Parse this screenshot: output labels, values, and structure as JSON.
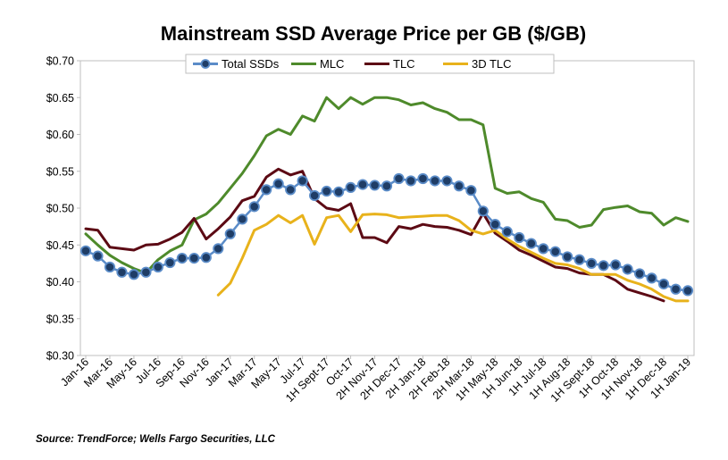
{
  "chart_data": {
    "type": "line",
    "title": "Mainstream SSD Average Price per GB ($/GB)",
    "source": "Source: TrendForce; Wells Fargo Securities, LLC",
    "ylim": [
      0.3,
      0.7
    ],
    "y_ticks": [
      "$0.30",
      "$0.35",
      "$0.40",
      "$0.45",
      "$0.50",
      "$0.55",
      "$0.60",
      "$0.65",
      "$0.70"
    ],
    "x_labels": [
      {
        "i": 0,
        "label": "Jan-16"
      },
      {
        "i": 2,
        "label": "Mar-16"
      },
      {
        "i": 4,
        "label": "May-16"
      },
      {
        "i": 6,
        "label": "Jul-16"
      },
      {
        "i": 8,
        "label": "Sep-16"
      },
      {
        "i": 10,
        "label": "Nov-16"
      },
      {
        "i": 12,
        "label": "Jan-17"
      },
      {
        "i": 14,
        "label": "Mar-17"
      },
      {
        "i": 16,
        "label": "May-17"
      },
      {
        "i": 18,
        "label": "Jul-17"
      },
      {
        "i": 20,
        "label": "1H Sept-17"
      },
      {
        "i": 22,
        "label": "Oct-17"
      },
      {
        "i": 24,
        "label": "2H Nov-17"
      },
      {
        "i": 26,
        "label": "2H Dec-17"
      },
      {
        "i": 28,
        "label": "2H Jan-18"
      },
      {
        "i": 30,
        "label": "2H Feb-18"
      },
      {
        "i": 32,
        "label": "2H Mar-18"
      },
      {
        "i": 34,
        "label": "1H May-18"
      },
      {
        "i": 36,
        "label": "1H Jun-18"
      },
      {
        "i": 38,
        "label": "1H Jul-18"
      },
      {
        "i": 40,
        "label": "1H Aug-18"
      },
      {
        "i": 42,
        "label": "1H Sept-18"
      },
      {
        "i": 44,
        "label": "1H Oct-18"
      },
      {
        "i": 46,
        "label": "1H Nov-18"
      },
      {
        "i": 48,
        "label": "1H Dec-18"
      },
      {
        "i": 50,
        "label": "1H Jan-19"
      }
    ],
    "n_points": 51,
    "series": [
      {
        "name": "Total SSDs",
        "color": "#5B8CC8",
        "marker_fill": "#1F3D66",
        "start": 0,
        "values": [
          0.442,
          0.435,
          0.42,
          0.413,
          0.41,
          0.413,
          0.42,
          0.426,
          0.432,
          0.432,
          0.433,
          0.445,
          0.465,
          0.485,
          0.502,
          0.525,
          0.533,
          0.525,
          0.537,
          0.517,
          0.523,
          0.522,
          0.528,
          0.532,
          0.531,
          0.53,
          0.54,
          0.537,
          0.54,
          0.537,
          0.537,
          0.53,
          0.524,
          0.496,
          0.478,
          0.468,
          0.46,
          0.452,
          0.445,
          0.441,
          0.434,
          0.43,
          0.425,
          0.422,
          0.423,
          0.417,
          0.411,
          0.405,
          0.397,
          0.39,
          0.388
        ]
      },
      {
        "name": "MLC",
        "color": "#4E8A2B",
        "start": 0,
        "values": [
          0.465,
          0.45,
          0.436,
          0.426,
          0.418,
          0.412,
          0.43,
          0.442,
          0.45,
          0.484,
          0.492,
          0.507,
          0.527,
          0.547,
          0.571,
          0.598,
          0.607,
          0.6,
          0.625,
          0.618,
          0.65,
          0.635,
          0.65,
          0.641,
          0.65,
          0.65,
          0.647,
          0.64,
          0.643,
          0.635,
          0.63,
          0.62,
          0.62,
          0.613,
          0.527,
          0.52,
          0.522,
          0.513,
          0.508,
          0.485,
          0.483,
          0.474,
          0.477,
          0.498,
          0.501,
          0.503,
          0.495,
          0.493,
          0.477,
          0.487,
          0.482
        ]
      },
      {
        "name": "TLC",
        "color": "#5C0A14",
        "start": 0,
        "values": [
          0.472,
          0.47,
          0.447,
          0.445,
          0.443,
          0.45,
          0.451,
          0.458,
          0.467,
          0.486,
          0.458,
          0.472,
          0.488,
          0.51,
          0.516,
          0.542,
          0.553,
          0.545,
          0.55,
          0.513,
          0.5,
          0.497,
          0.506,
          0.46,
          0.46,
          0.453,
          0.475,
          0.472,
          0.478,
          0.475,
          0.474,
          0.47,
          0.464,
          0.493,
          0.466,
          0.455,
          0.443,
          0.436,
          0.428,
          0.42,
          0.418,
          0.412,
          0.41,
          0.41,
          0.402,
          0.39,
          0.385,
          0.38,
          0.374,
          null,
          null
        ]
      },
      {
        "name": "3D TLC",
        "color": "#E8B21B",
        "start": 11,
        "values": [
          null,
          null,
          null,
          null,
          null,
          null,
          null,
          null,
          null,
          null,
          null,
          0.382,
          0.398,
          0.432,
          0.47,
          0.478,
          0.49,
          0.48,
          0.49,
          0.451,
          0.487,
          0.49,
          0.468,
          0.491,
          0.492,
          0.491,
          0.487,
          0.488,
          0.489,
          0.49,
          0.49,
          0.483,
          0.47,
          0.465,
          0.47,
          0.458,
          0.448,
          0.44,
          0.432,
          0.425,
          0.423,
          0.418,
          0.41,
          0.41,
          0.41,
          0.402,
          0.397,
          0.39,
          0.38,
          0.374,
          0.374
        ]
      }
    ]
  }
}
